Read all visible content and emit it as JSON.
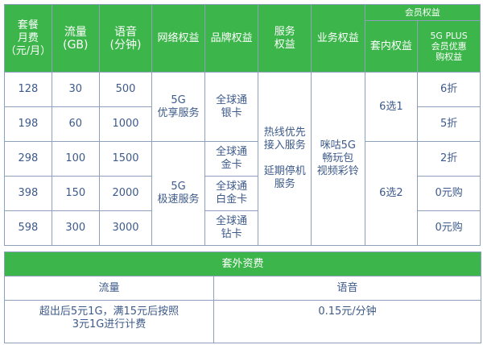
{
  "header": {
    "price": "套餐\n月费\n（元/月）",
    "data": "流量\n(GB)",
    "voice": "语音\n(分钟)",
    "network": "网络权益",
    "brand": "品牌权益",
    "service": "服务\n权益",
    "business": "业务权益",
    "member": "会员权益",
    "member_in": "套内权益",
    "member_plus": "5G PLUS\n会员优惠\n购权益"
  },
  "rows": [
    {
      "price": "128",
      "data": "30",
      "voice": "500",
      "plus": "6折"
    },
    {
      "price": "198",
      "data": "60",
      "voice": "1000",
      "plus": "5折"
    },
    {
      "price": "298",
      "data": "100",
      "voice": "1500",
      "plus": "2折"
    },
    {
      "price": "398",
      "data": "150",
      "voice": "2000",
      "plus": "0元购"
    },
    {
      "price": "598",
      "data": "300",
      "voice": "3000",
      "plus": "0元购"
    }
  ],
  "network": [
    "5G\n优享服务",
    "5G\n极速服务"
  ],
  "brand": [
    "全球通\n银卡",
    "全球通\n金卡",
    "全球通\n白金卡",
    "全球通\n钻卡"
  ],
  "service": "热线优先\n接入服务\n\n延期停机\n服务",
  "business": "咪咕5G\n畅玩包\n视频彩铃",
  "member_in": [
    "6选1",
    "6选2"
  ],
  "extra": {
    "title": "套外资费",
    "data_label": "流量",
    "voice_label": "语音",
    "data_value": "超出后5元1G，满15元后按照\n3元1G进行计费",
    "voice_value": "0.15元/分钟"
  },
  "colors": {
    "header_bg": "#3cb54a",
    "text": "#3d5a8a",
    "border": "#8fa0bd"
  }
}
